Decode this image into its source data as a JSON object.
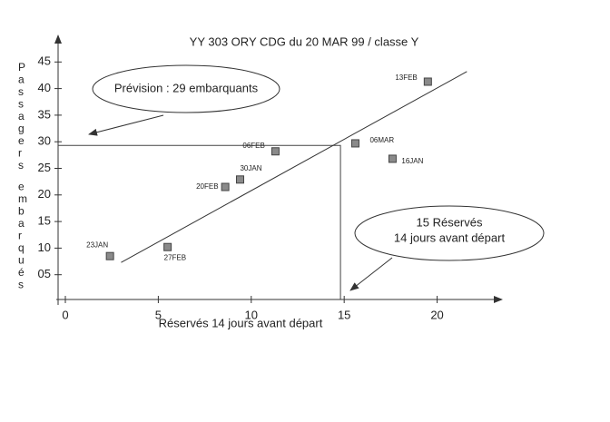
{
  "chart_data": {
    "type": "scatter",
    "title": "YY 303 ORY CDG du 20 MAR 99 / classe Y",
    "x_label": "Réservés 14 jours avant départ",
    "y_label": "Passagers embarqués",
    "xlim": [
      0,
      23
    ],
    "ylim": [
      0,
      50
    ],
    "xticks": [
      0,
      5,
      10,
      15,
      20
    ],
    "yticks": [
      {
        "value": 5,
        "label": "05"
      },
      10,
      15,
      20,
      25,
      30,
      35,
      40,
      45
    ],
    "color": "#8a8a8a",
    "points": {
      "labels": [
        "23JAN",
        "27FEB",
        "20FEB",
        "30JAN",
        "06FEB",
        "06MAR",
        "16JAN",
        "13FEB"
      ],
      "x": [
        2.4,
        5.5,
        8.6,
        9.4,
        11.3,
        15.6,
        17.6,
        19.5
      ],
      "y": [
        8.5,
        10.2,
        21.5,
        22.9,
        28.2,
        29.7,
        26.8,
        41.3
      ]
    },
    "trend": {
      "x": [
        3,
        21.6
      ],
      "y": [
        7.3,
        43.2
      ]
    },
    "guide": {
      "x": 14.8,
      "y": 29.3
    },
    "annotations": [
      {
        "lines": [
          "Prévision : 29 embarquants"
        ]
      },
      {
        "lines": [
          "15 Réservés",
          "14 jours avant départ"
        ]
      }
    ]
  }
}
